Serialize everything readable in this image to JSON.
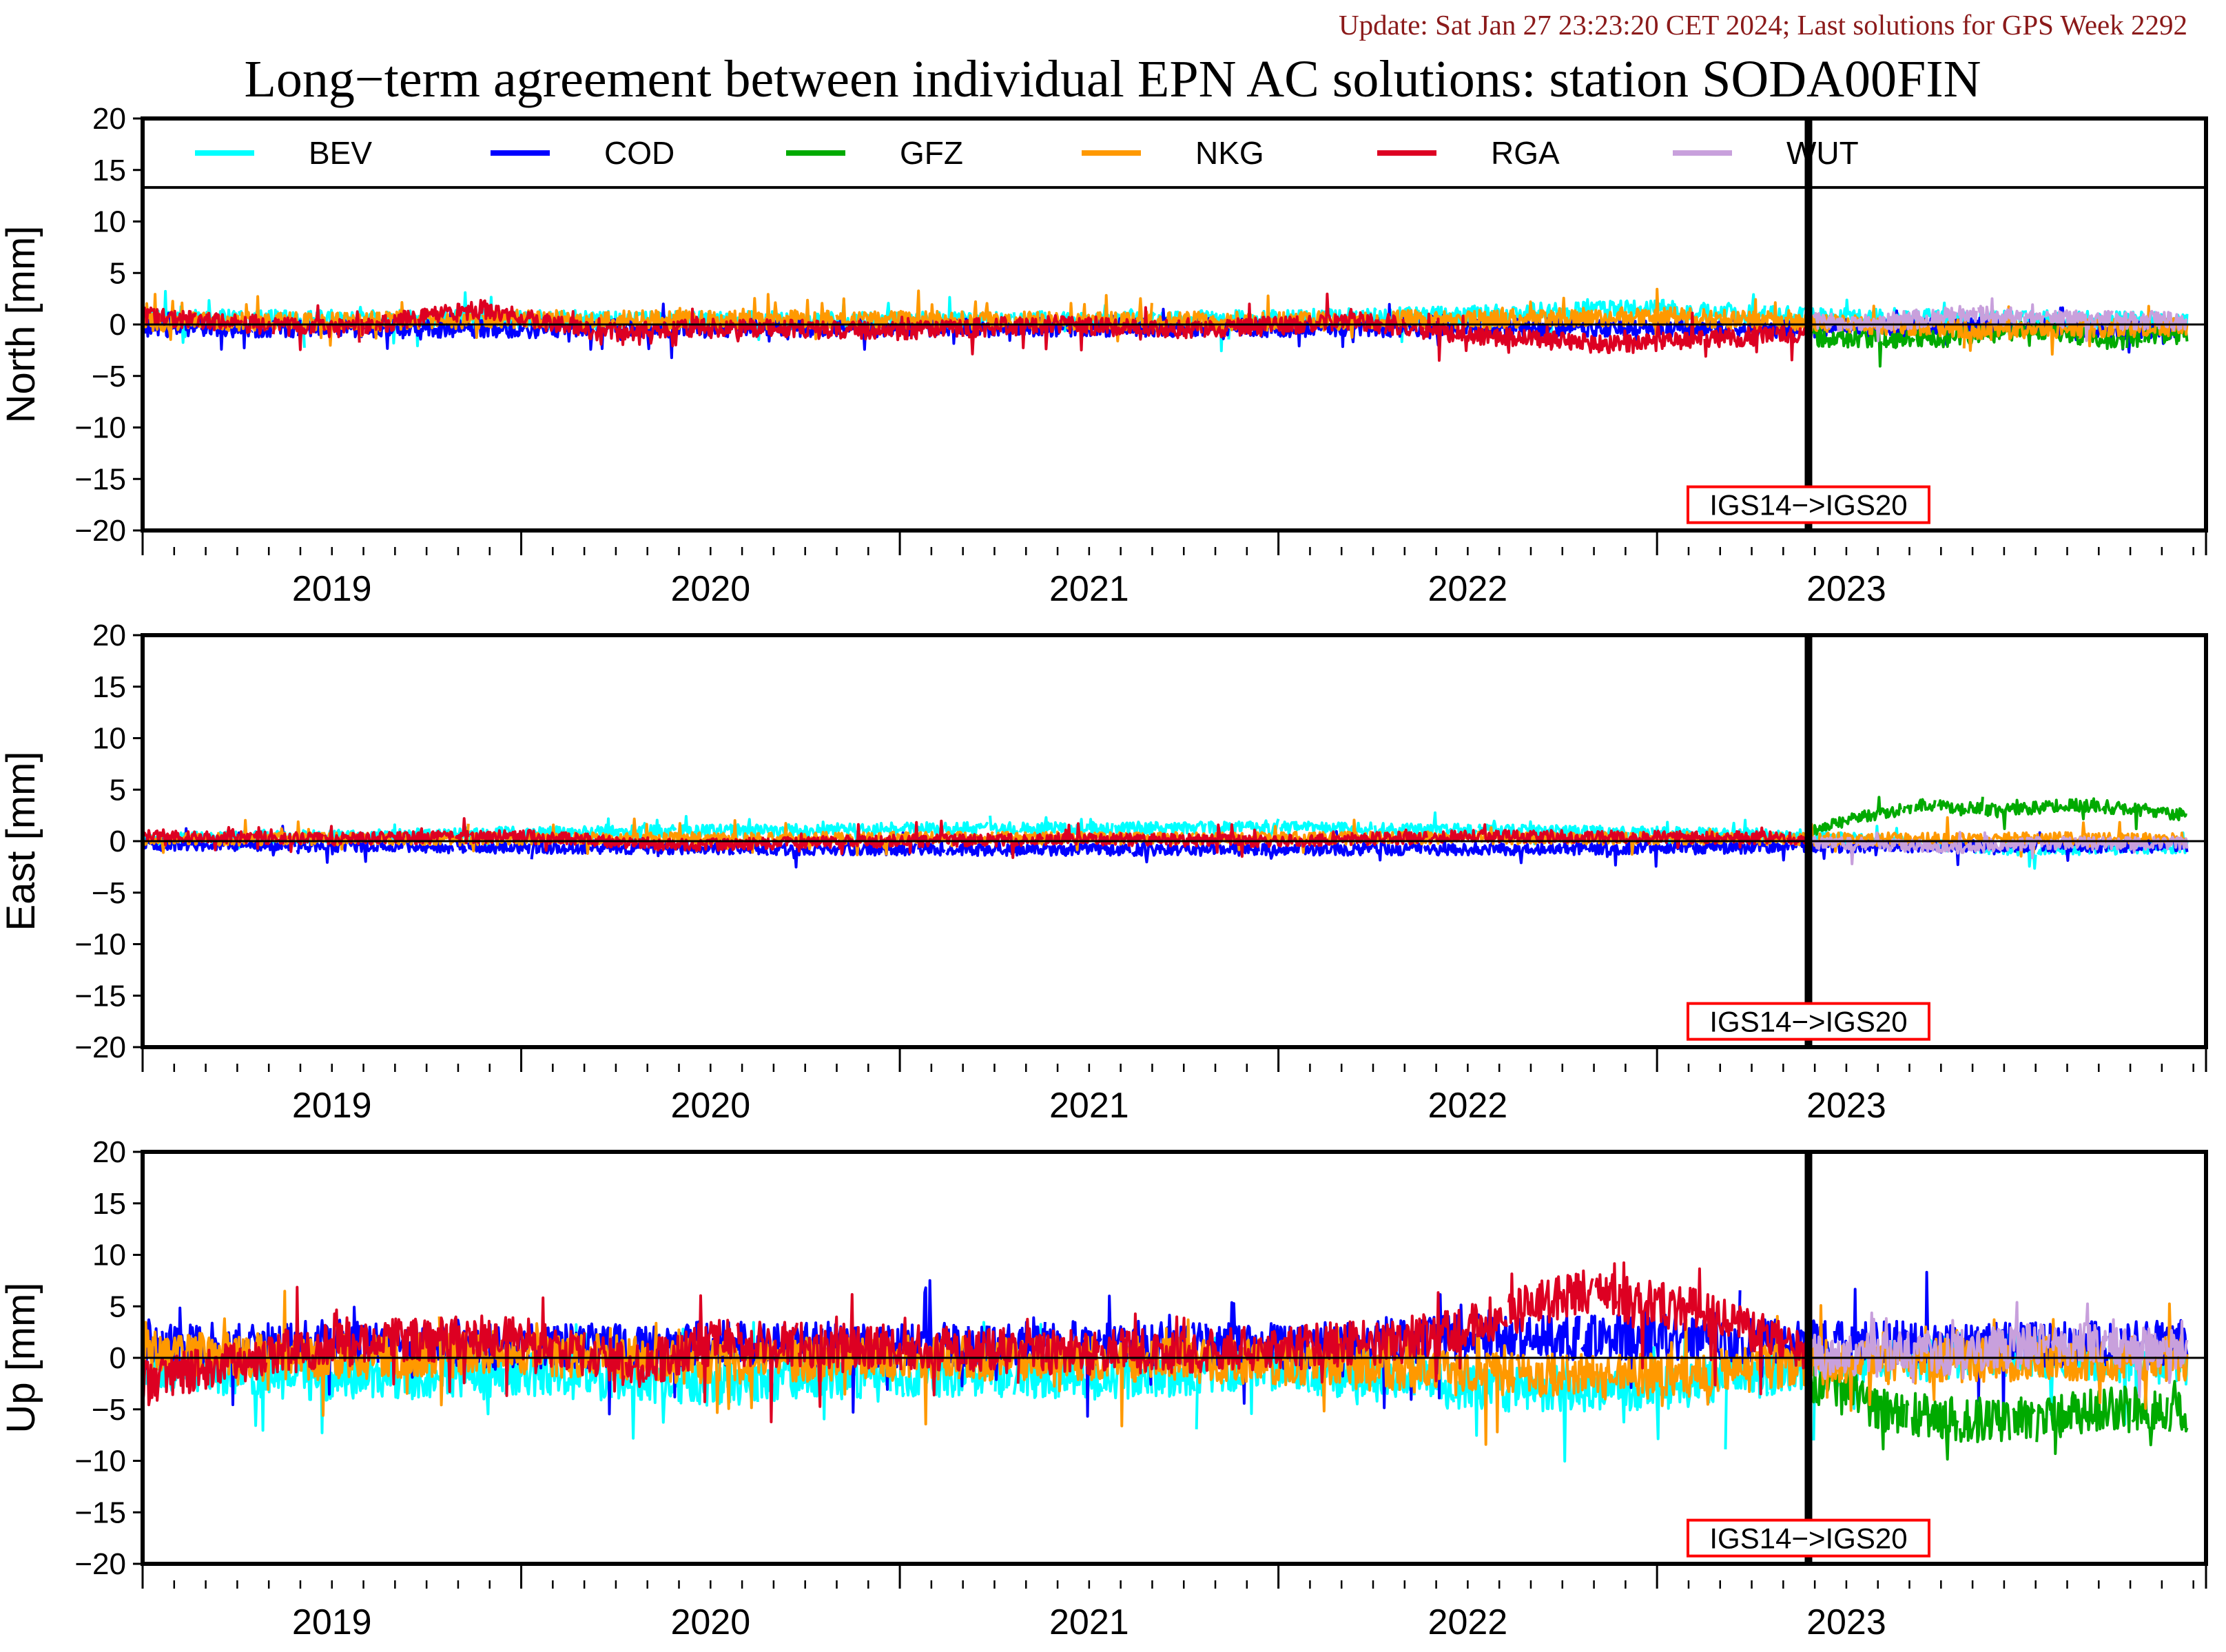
{
  "header": {
    "update": "Update: Sat Jan 27 23:23:20 CET 2024; Last solutions for GPS Week 2292",
    "title": "Long−term agreement between individual EPN AC solutions: station SODA00FIN"
  },
  "colors": {
    "BEV": "#00ffff",
    "COD": "#0000ff",
    "GFZ": "#00aa00",
    "NKG": "#ff9900",
    "RGA": "#dd0022",
    "WUT": "#c8a0dc",
    "update_text": "#8b1a1a",
    "annotation_border": "#ff0000"
  },
  "chart_data": [
    {
      "type": "line",
      "panel": "north",
      "ylabel": "North [mm]",
      "ylim": [
        -20,
        20
      ],
      "yticks": [
        20,
        15,
        10,
        5,
        0,
        -5,
        -10,
        -15,
        -20
      ],
      "ytick_labels": [
        "20",
        "15",
        "10",
        "5",
        "0",
        "−5",
        "−10",
        "−15",
        "−20"
      ],
      "xlim": [
        2018.5,
        2023.95
      ],
      "x_tick_labels": [
        "2019",
        "2020",
        "2021",
        "2022",
        "2023"
      ],
      "x_tick_positions": [
        2019,
        2020,
        2021,
        2022,
        2023
      ],
      "year_boundaries": [
        2019.5,
        2020.5,
        2021.5,
        2022.5
      ],
      "legend": {
        "position": "top",
        "entries": [
          "BEV",
          "COD",
          "GFZ",
          "NKG",
          "RGA",
          "WUT"
        ]
      },
      "frame_change": {
        "x": 2022.9,
        "label": "IGS14−>IGS20"
      },
      "series": [
        {
          "name": "BEV",
          "segments": [
            {
              "x": [
                2018.5,
                2019.5,
                2020.5,
                2021.5,
                2022.0,
                2022.5,
                2022.9,
                2023.4,
                2023.9
              ],
              "y": [
                0.5,
                0.5,
                0.3,
                0.5,
                1.0,
                1.5,
                0.8,
                0.5,
                0.3
              ]
            }
          ]
        },
        {
          "name": "COD",
          "segments": [
            {
              "x": [
                2018.5,
                2019.5,
                2020.5,
                2021.5,
                2022.5,
                2022.9,
                2023.4,
                2023.9
              ],
              "y": [
                -0.3,
                -0.4,
                -0.3,
                -0.3,
                -0.3,
                -0.4,
                -0.2,
                -0.6
              ]
            }
          ]
        },
        {
          "name": "GFZ",
          "segments": [
            {
              "x": [
                2022.9,
                2023.2,
                2023.5,
                2023.7,
                2023.9
              ],
              "y": [
                -1.2,
                -1.5,
                -0.5,
                -1.5,
                -1.0
              ]
            }
          ]
        },
        {
          "name": "NKG",
          "segments": [
            {
              "x": [
                2018.5,
                2019.5,
                2020.5,
                2021.5,
                2022.5,
                2022.9,
                2023.4,
                2023.9
              ],
              "y": [
                0.2,
                0.5,
                0.4,
                0.3,
                0.8,
                0.2,
                -0.6,
                -0.2
              ]
            }
          ]
        },
        {
          "name": "RGA",
          "segments": [
            {
              "x": [
                2018.5,
                2019.0,
                2019.4,
                2019.7,
                2020.0,
                2020.5,
                2020.9,
                2021.3,
                2021.7,
                2022.0,
                2022.4,
                2022.9
              ],
              "y": [
                0.8,
                -0.5,
                1.5,
                -0.8,
                -0.3,
                -0.6,
                0.0,
                -0.5,
                0.3,
                -1.0,
                -2.0,
                -0.8
              ]
            }
          ]
        },
        {
          "name": "WUT",
          "segments": [
            {
              "x": [
                2022.9,
                2023.1,
                2023.3,
                2023.6,
                2023.9
              ],
              "y": [
                0.3,
                0.2,
                1.0,
                0.5,
                0.3
              ]
            }
          ]
        }
      ]
    },
    {
      "type": "line",
      "panel": "east",
      "ylabel": "East [mm]",
      "ylim": [
        -20,
        20
      ],
      "yticks": [
        20,
        15,
        10,
        5,
        0,
        -5,
        -10,
        -15,
        -20
      ],
      "ytick_labels": [
        "20",
        "15",
        "10",
        "5",
        "0",
        "−5",
        "−10",
        "−15",
        "−20"
      ],
      "xlim": [
        2018.5,
        2023.95
      ],
      "x_tick_labels": [
        "2019",
        "2020",
        "2021",
        "2022",
        "2023"
      ],
      "x_tick_positions": [
        2019,
        2020,
        2021,
        2022,
        2023
      ],
      "year_boundaries": [
        2019.5,
        2020.5,
        2021.5,
        2022.5
      ],
      "frame_change": {
        "x": 2022.9,
        "label": "IGS14−>IGS20"
      },
      "series": [
        {
          "name": "BEV",
          "segments": [
            {
              "x": [
                2018.5,
                2019.5,
                2020.5,
                2021.5,
                2022.5,
                2022.9,
                2023.4,
                2023.9
              ],
              "y": [
                0.2,
                0.8,
                1.2,
                1.3,
                0.8,
                0.5,
                -0.8,
                -0.6
              ]
            }
          ]
        },
        {
          "name": "COD",
          "segments": [
            {
              "x": [
                2018.5,
                2019.5,
                2020.5,
                2021.5,
                2022.5,
                2022.9,
                2023.4,
                2023.9
              ],
              "y": [
                -0.3,
                -0.6,
                -0.8,
                -0.8,
                -0.7,
                -0.5,
                -0.5,
                -0.5
              ]
            }
          ]
        },
        {
          "name": "GFZ",
          "segments": [
            {
              "x": [
                2022.9,
                2023.0,
                2023.2,
                2023.4,
                2023.6,
                2023.8,
                2023.9
              ],
              "y": [
                1.0,
                2.0,
                3.5,
                3.0,
                3.5,
                3.0,
                2.5
              ]
            }
          ]
        },
        {
          "name": "NKG",
          "segments": [
            {
              "x": [
                2018.5,
                2019.5,
                2020.5,
                2021.5,
                2022.5,
                2022.9,
                2023.4,
                2023.9
              ],
              "y": [
                0.2,
                0.2,
                0.3,
                0.3,
                0.3,
                0.2,
                0.3,
                0.2
              ]
            }
          ]
        },
        {
          "name": "RGA",
          "segments": [
            {
              "x": [
                2018.5,
                2019.0,
                2019.5,
                2019.9,
                2020.5,
                2021.0,
                2021.5,
                2022.0,
                2022.5,
                2022.9
              ],
              "y": [
                0.6,
                0.2,
                0.5,
                -0.4,
                0.0,
                0.2,
                0.0,
                0.5,
                0.4,
                0.3
              ]
            }
          ]
        },
        {
          "name": "WUT",
          "segments": [
            {
              "x": [
                2022.9,
                2023.3,
                2023.5,
                2023.9
              ],
              "y": [
                -0.1,
                -0.6,
                -0.2,
                -0.2
              ]
            }
          ]
        }
      ]
    },
    {
      "type": "line",
      "panel": "up",
      "ylabel": "Up [mm]",
      "ylim": [
        -20,
        20
      ],
      "yticks": [
        20,
        15,
        10,
        5,
        0,
        -5,
        -10,
        -15,
        -20
      ],
      "ytick_labels": [
        "20",
        "15",
        "10",
        "5",
        "0",
        "−5",
        "−10",
        "−15",
        "−20"
      ],
      "xlim": [
        2018.5,
        2023.95
      ],
      "x_tick_labels": [
        "2019",
        "2020",
        "2021",
        "2022",
        "2023"
      ],
      "x_tick_positions": [
        2019,
        2020,
        2021,
        2022,
        2023
      ],
      "year_boundaries": [
        2019.5,
        2020.5,
        2021.5,
        2022.5
      ],
      "frame_change": {
        "x": 2022.9,
        "label": "IGS14−>IGS20"
      },
      "series": [
        {
          "name": "BEV",
          "segments": [
            {
              "x": [
                2018.5,
                2019.0,
                2019.5,
                2020.0,
                2020.5,
                2021.0,
                2021.5,
                2022.0,
                2022.5,
                2022.9,
                2023.4,
                2023.9
              ],
              "y": [
                -1.0,
                -2.0,
                -1.5,
                -2.5,
                -1.5,
                -2.0,
                -1.0,
                -3.0,
                -3.0,
                -1.0,
                0.5,
                -0.5
              ]
            }
          ]
        },
        {
          "name": "COD",
          "segments": [
            {
              "x": [
                2018.5,
                2019.0,
                2019.5,
                2020.0,
                2020.5,
                2021.0,
                2021.5,
                2022.0,
                2022.5,
                2022.9,
                2023.4,
                2023.9
              ],
              "y": [
                1.0,
                1.5,
                1.0,
                1.5,
                1.2,
                1.5,
                1.0,
                2.0,
                2.0,
                1.5,
                1.2,
                1.5
              ]
            }
          ]
        },
        {
          "name": "GFZ",
          "segments": [
            {
              "x": [
                2022.9,
                2023.1,
                2023.3,
                2023.5,
                2023.7,
                2023.9
              ],
              "y": [
                -2.0,
                -5.0,
                -6.0,
                -6.0,
                -5.0,
                -5.0
              ]
            }
          ]
        },
        {
          "name": "NKG",
          "segments": [
            {
              "x": [
                2018.5,
                2019.0,
                2019.5,
                2020.0,
                2020.5,
                2021.0,
                2021.5,
                2022.0,
                2022.5,
                2022.9,
                2023.4,
                2023.9
              ],
              "y": [
                0.5,
                0.0,
                0.5,
                -0.5,
                0.0,
                0.0,
                -0.5,
                -1.5,
                -2.0,
                -0.5,
                -0.2,
                0.0
              ]
            }
          ]
        },
        {
          "name": "RGA",
          "segments": [
            {
              "x": [
                2018.5,
                2018.8,
                2019.0,
                2019.5,
                2019.8,
                2020.0,
                2020.5,
                2021.0,
                2021.5,
                2021.8,
                2022.0,
                2022.3,
                2022.6,
                2022.9
              ],
              "y": [
                -2.5,
                0.0,
                1.5,
                2.0,
                -1.0,
                1.5,
                1.0,
                0.5,
                1.0,
                1.5,
                3.0,
                6.5,
                4.5,
                0.5
              ]
            }
          ]
        },
        {
          "name": "WUT",
          "segments": [
            {
              "x": [
                2022.9,
                2023.3,
                2023.6,
                2023.9
              ],
              "y": [
                0.0,
                0.5,
                1.5,
                0.5
              ]
            }
          ]
        }
      ]
    }
  ]
}
